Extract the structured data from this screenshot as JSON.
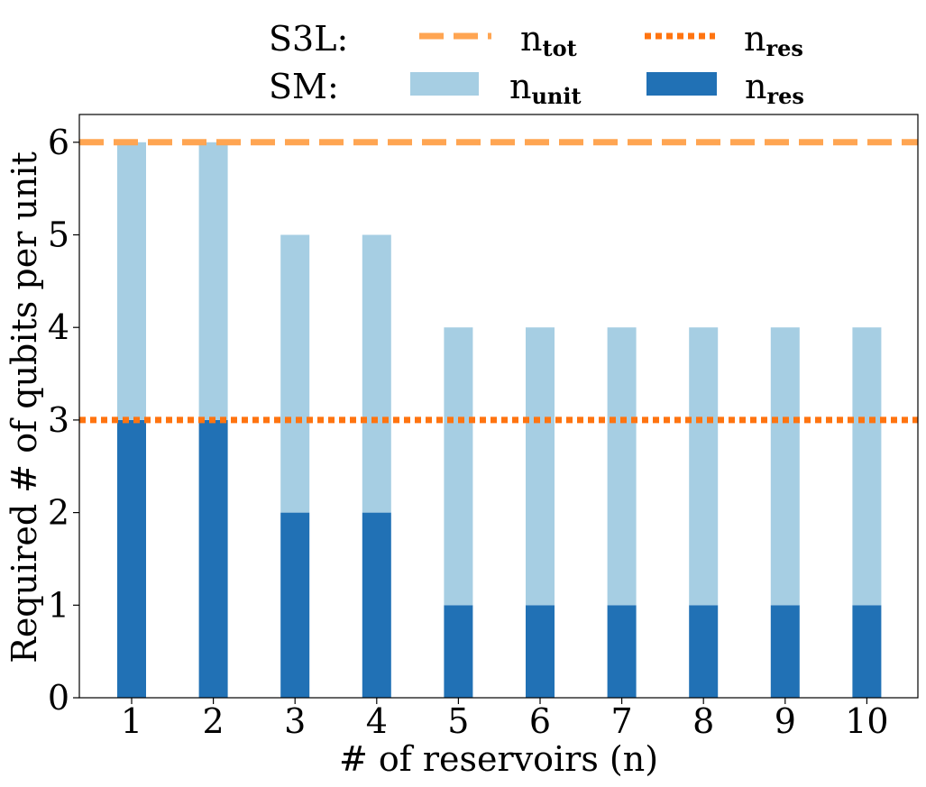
{
  "chart_data": {
    "type": "bar",
    "stacked": true,
    "categories": [
      "1",
      "2",
      "3",
      "4",
      "5",
      "6",
      "7",
      "8",
      "9",
      "10"
    ],
    "series": [
      {
        "name": "n_res (SM)",
        "color": "#2171b5",
        "values": [
          3,
          3,
          2,
          2,
          1,
          1,
          1,
          1,
          1,
          1
        ]
      },
      {
        "name": "n_unit (SM)",
        "color": "#a6cee3",
        "values": [
          3,
          3,
          3,
          3,
          3,
          3,
          3,
          3,
          3,
          3
        ]
      }
    ],
    "totals": [
      6,
      6,
      5,
      5,
      4,
      4,
      4,
      4,
      4,
      4
    ],
    "reference_lines": [
      {
        "name": "n_tot (S3L)",
        "value": 6,
        "style": "dashed",
        "color": "#ffa552"
      },
      {
        "name": "n_res (S3L)",
        "value": 3,
        "style": "dotted",
        "color": "#ff7410"
      }
    ],
    "xlabel": "# of reservoirs (n)",
    "ylabel": "Required # of qubits per unit",
    "ylim": [
      0,
      6.3
    ],
    "yticks": [
      0,
      1,
      2,
      3,
      4,
      5,
      6
    ],
    "grid": false,
    "legend": {
      "placement": "top",
      "rows": [
        {
          "label": "S3L:",
          "entries": [
            {
              "base": "n",
              "sub": "tot",
              "style": "dashed",
              "color": "#ffa552"
            },
            {
              "base": "n",
              "sub": "res",
              "style": "dotted",
              "color": "#ff7410"
            }
          ]
        },
        {
          "label": "SM:",
          "entries": [
            {
              "base": "n",
              "sub": "unit",
              "style": "patch",
              "color": "#a6cee3"
            },
            {
              "base": "n",
              "sub": "res",
              "style": "patch",
              "color": "#2171b5"
            }
          ]
        }
      ]
    }
  }
}
